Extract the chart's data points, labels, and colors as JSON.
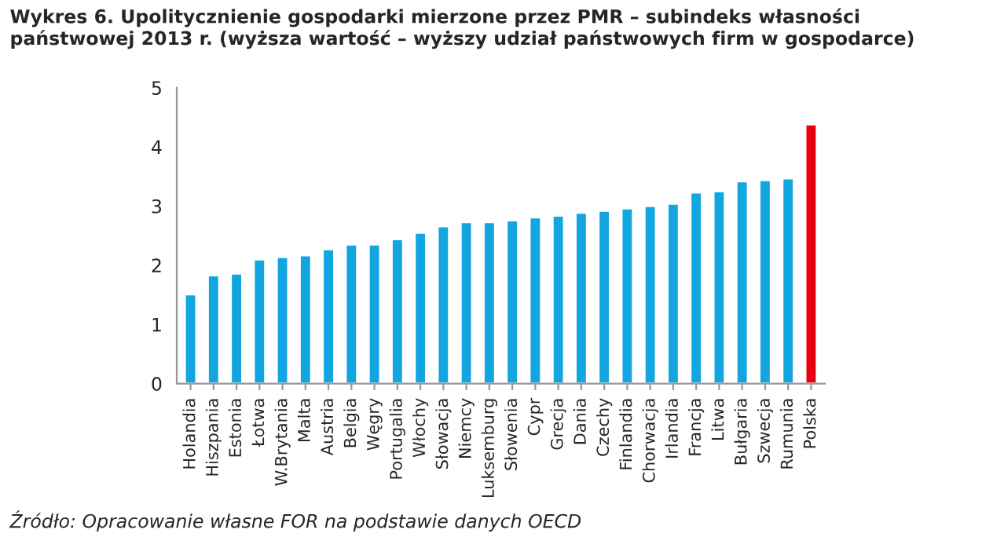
{
  "chart_data": {
    "type": "bar",
    "title": "Wykres 6. Upolitycznienie gospodarki mierzone przez PMR – subindeks własności państwowej 2013 r. (wyższa wartość – wyższy udział państwowych firm w gospodarce)",
    "categories": [
      "Holandia",
      "Hiszpania",
      "Estonia",
      "Łotwa",
      "W.Brytania",
      "Malta",
      "Austria",
      "Belgia",
      "Węgry",
      "Portugalia",
      "Włochy",
      "Słowacja",
      "Niemcy",
      "Luksemburg",
      "Słowenia",
      "Cypr",
      "Grecja",
      "Dania",
      "Czechy",
      "Finlandia",
      "Chorwacja",
      "Irlandia",
      "Francja",
      "Litwa",
      "Bułgaria",
      "Szwecja",
      "Rumunia",
      "Polska"
    ],
    "values": [
      1.51,
      1.83,
      1.86,
      2.1,
      2.14,
      2.17,
      2.27,
      2.35,
      2.35,
      2.44,
      2.55,
      2.66,
      2.73,
      2.73,
      2.76,
      2.81,
      2.84,
      2.89,
      2.92,
      2.96,
      3.0,
      3.04,
      3.23,
      3.25,
      3.42,
      3.44,
      3.47,
      4.38
    ],
    "colors": [
      "#12a6e0",
      "#12a6e0",
      "#12a6e0",
      "#12a6e0",
      "#12a6e0",
      "#12a6e0",
      "#12a6e0",
      "#12a6e0",
      "#12a6e0",
      "#12a6e0",
      "#12a6e0",
      "#12a6e0",
      "#12a6e0",
      "#12a6e0",
      "#12a6e0",
      "#12a6e0",
      "#12a6e0",
      "#12a6e0",
      "#12a6e0",
      "#12a6e0",
      "#12a6e0",
      "#12a6e0",
      "#12a6e0",
      "#12a6e0",
      "#12a6e0",
      "#12a6e0",
      "#12a6e0",
      "#e8000e"
    ],
    "ylim": [
      0,
      5
    ],
    "yticks": [
      0,
      1,
      2,
      3,
      4,
      5
    ],
    "grid": false,
    "annotations": [
      "Źródło: Opracowanie własne FOR na podstawie danych OECD"
    ]
  }
}
